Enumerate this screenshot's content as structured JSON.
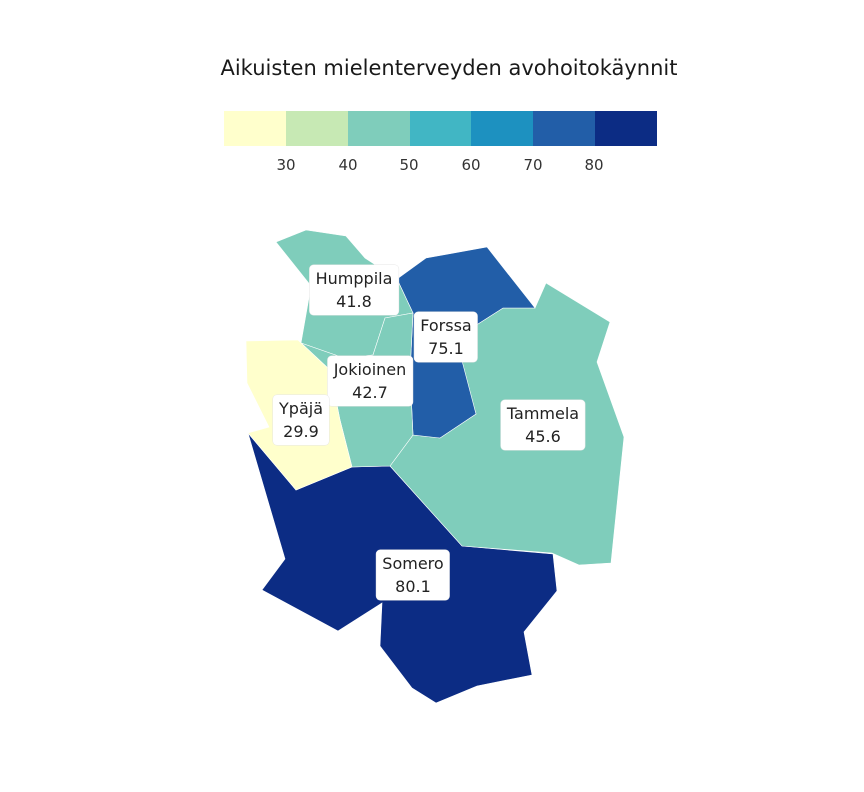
{
  "title": "Aikuisten mielenterveyden avohoitokäynnit",
  "legend": {
    "bins": [
      {
        "color": "#ffffcc"
      },
      {
        "color": "#c7e9b4"
      },
      {
        "color": "#7fcdbb"
      },
      {
        "color": "#41b6c4"
      },
      {
        "color": "#1d91c0"
      },
      {
        "color": "#225ea8"
      },
      {
        "color": "#0c2c84"
      }
    ],
    "ticks": [
      "30",
      "40",
      "50",
      "60",
      "70",
      "80"
    ]
  },
  "regions": [
    {
      "name": "Humppila",
      "value": "41.8",
      "color": "#7fcdbb"
    },
    {
      "name": "Forssa",
      "value": "75.1",
      "color": "#225ea8"
    },
    {
      "name": "Jokioinen",
      "value": "42.7",
      "color": "#7fcdbb"
    },
    {
      "name": "Ypäjä",
      "value": "29.9",
      "color": "#ffffcc"
    },
    {
      "name": "Tammela",
      "value": "45.6",
      "color": "#7fcdbb"
    },
    {
      "name": "Somero",
      "value": "80.1",
      "color": "#0c2c84"
    }
  ]
}
